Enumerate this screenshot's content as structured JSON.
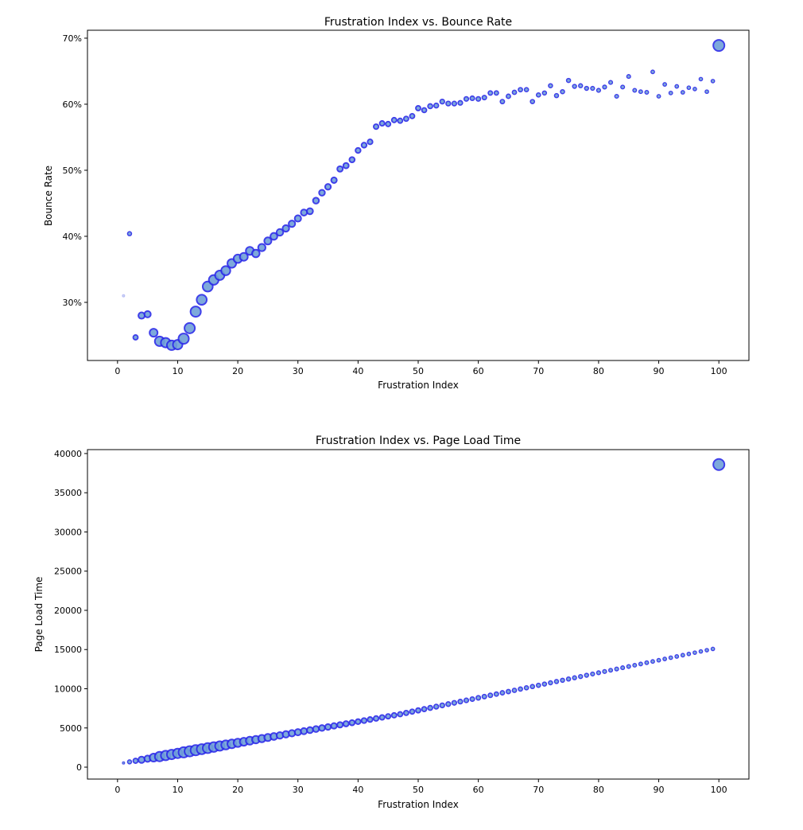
{
  "colors": {
    "marker_fill": "#6fa0d8",
    "marker_edge": "#2b2be8",
    "axes": "#000000"
  },
  "chart_data": [
    {
      "type": "scatter",
      "title": "Frustration Index vs. Bounce Rate",
      "xlabel": "Frustration Index",
      "ylabel": "Bounce Rate",
      "xlim": [
        -5,
        105
      ],
      "ylim": [
        21.2,
        71.2
      ],
      "xticks": [
        0,
        10,
        20,
        30,
        40,
        50,
        60,
        70,
        80,
        90,
        100
      ],
      "xtick_labels": [
        "0",
        "10",
        "20",
        "30",
        "40",
        "50",
        "60",
        "70",
        "80",
        "90",
        "100"
      ],
      "yticks": [
        30,
        40,
        50,
        60,
        70
      ],
      "ytick_labels": [
        "30%",
        "40%",
        "50%",
        "60%",
        "70%"
      ],
      "grid": false,
      "x": [
        1,
        2,
        3,
        4,
        5,
        6,
        7,
        8,
        9,
        10,
        11,
        12,
        13,
        14,
        15,
        16,
        17,
        18,
        19,
        20,
        21,
        22,
        23,
        24,
        25,
        26,
        27,
        28,
        29,
        30,
        31,
        32,
        33,
        34,
        35,
        36,
        37,
        38,
        39,
        40,
        41,
        42,
        43,
        44,
        45,
        46,
        47,
        48,
        49,
        50,
        51,
        52,
        53,
        54,
        55,
        56,
        57,
        58,
        59,
        60,
        61,
        62,
        63,
        64,
        65,
        66,
        67,
        68,
        69,
        70,
        71,
        72,
        73,
        74,
        75,
        76,
        77,
        78,
        79,
        80,
        81,
        82,
        83,
        84,
        85,
        86,
        87,
        88,
        89,
        90,
        91,
        92,
        93,
        94,
        95,
        96,
        97,
        98,
        99,
        100
      ],
      "y": [
        31.0,
        40.4,
        24.7,
        28.0,
        28.2,
        25.4,
        24.1,
        23.9,
        23.5,
        23.6,
        24.5,
        26.1,
        28.6,
        30.4,
        32.4,
        33.4,
        34.1,
        34.8,
        35.9,
        36.6,
        36.9,
        37.8,
        37.4,
        38.3,
        39.3,
        40.0,
        40.6,
        41.2,
        41.9,
        42.7,
        43.6,
        43.8,
        45.4,
        46.6,
        47.5,
        48.5,
        50.2,
        50.7,
        51.6,
        53.0,
        53.8,
        54.3,
        56.6,
        57.1,
        57.0,
        57.6,
        57.5,
        57.8,
        58.2,
        59.4,
        59.1,
        59.7,
        59.8,
        60.4,
        60.1,
        60.1,
        60.2,
        60.8,
        60.9,
        60.8,
        61.0,
        61.7,
        61.7,
        60.4,
        61.2,
        61.8,
        62.2,
        62.2,
        60.4,
        61.4,
        61.7,
        62.8,
        61.3,
        61.9,
        63.6,
        62.7,
        62.8,
        62.4,
        62.4,
        62.1,
        62.6,
        63.3,
        61.2,
        62.6,
        64.2,
        62.1,
        61.9,
        61.8,
        64.9,
        61.2,
        63.0,
        61.7,
        62.7,
        61.8,
        62.5,
        62.3,
        63.8,
        61.9,
        63.5,
        68.9
      ]
    },
    {
      "type": "scatter",
      "title": "Frustration Index vs. Page Load Time",
      "xlabel": "Frustration Index",
      "ylabel": "Page Load Time",
      "xlim": [
        -5,
        105
      ],
      "ylim": [
        -1520,
        40500
      ],
      "xticks": [
        0,
        10,
        20,
        30,
        40,
        50,
        60,
        70,
        80,
        90,
        100
      ],
      "xtick_labels": [
        "0",
        "10",
        "20",
        "30",
        "40",
        "50",
        "60",
        "70",
        "80",
        "90",
        "100"
      ],
      "yticks": [
        0,
        5000,
        10000,
        15000,
        20000,
        25000,
        30000,
        35000,
        40000
      ],
      "ytick_labels": [
        "0",
        "5000",
        "10000",
        "15000",
        "20000",
        "25000",
        "30000",
        "35000",
        "40000"
      ],
      "grid": false,
      "x": [
        1,
        2,
        3,
        4,
        5,
        6,
        7,
        8,
        9,
        10,
        11,
        12,
        13,
        14,
        15,
        16,
        17,
        18,
        19,
        20,
        21,
        22,
        23,
        24,
        25,
        26,
        27,
        28,
        29,
        30,
        31,
        32,
        33,
        34,
        35,
        36,
        37,
        38,
        39,
        40,
        41,
        42,
        43,
        44,
        45,
        46,
        47,
        48,
        49,
        50,
        51,
        52,
        53,
        54,
        55,
        56,
        57,
        58,
        59,
        60,
        61,
        62,
        63,
        64,
        65,
        66,
        67,
        68,
        69,
        70,
        71,
        72,
        73,
        74,
        75,
        76,
        77,
        78,
        79,
        80,
        81,
        82,
        83,
        84,
        85,
        86,
        87,
        88,
        89,
        90,
        91,
        92,
        93,
        94,
        95,
        96,
        97,
        98,
        99,
        100
      ],
      "y": [
        540,
        675,
        810,
        945,
        1080,
        1215,
        1350,
        1485,
        1620,
        1755,
        1890,
        2025,
        2160,
        2295,
        2430,
        2565,
        2700,
        2835,
        2970,
        3105,
        3240,
        3375,
        3510,
        3645,
        3780,
        3915,
        4050,
        4185,
        4320,
        4455,
        4590,
        4725,
        4860,
        4995,
        5130,
        5265,
        5400,
        5535,
        5670,
        5805,
        5940,
        6075,
        6210,
        6345,
        6480,
        6615,
        6750,
        6920,
        7080,
        7240,
        7400,
        7560,
        7720,
        7880,
        8040,
        8200,
        8360,
        8520,
        8680,
        8840,
        9000,
        9160,
        9320,
        9480,
        9640,
        9800,
        9960,
        10120,
        10280,
        10440,
        10600,
        10760,
        10920,
        11080,
        11240,
        11400,
        11560,
        11720,
        11880,
        12040,
        12200,
        12360,
        12520,
        12680,
        12840,
        13000,
        13160,
        13320,
        13480,
        13640,
        13800,
        13960,
        14120,
        14280,
        14440,
        14600,
        14760,
        14920,
        15080,
        38600
      ]
    }
  ],
  "marker_sizes": [
    9,
    25,
    36,
    64,
    64,
    100,
    144,
    144,
    144,
    144,
    169,
    169,
    169,
    160,
    160,
    150,
    140,
    130,
    120,
    110,
    100,
    100,
    90,
    85,
    80,
    75,
    70,
    68,
    66,
    64,
    60,
    58,
    56,
    54,
    52,
    50,
    48,
    46,
    44,
    42,
    41,
    40,
    39,
    38,
    37,
    37,
    36,
    36,
    36,
    36,
    35,
    34,
    33,
    32,
    32,
    31,
    31,
    30,
    30,
    30,
    29,
    29,
    28,
    28,
    28,
    27,
    27,
    26,
    26,
    26,
    25,
    25,
    25,
    25,
    25,
    24,
    24,
    24,
    23,
    23,
    23,
    22,
    22,
    22,
    22,
    21,
    21,
    21,
    20,
    20,
    20,
    20,
    20,
    20,
    19,
    19,
    19,
    19,
    19,
    196
  ]
}
